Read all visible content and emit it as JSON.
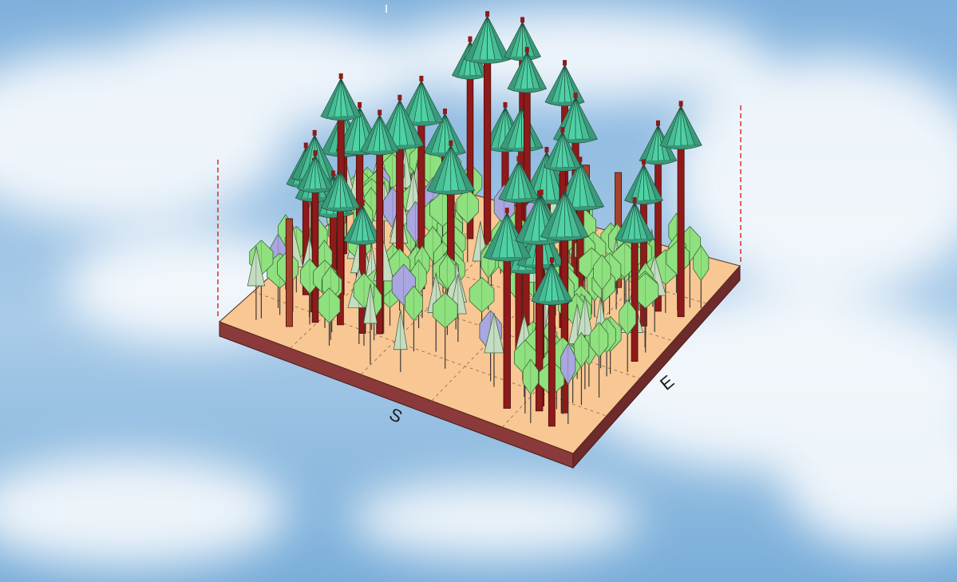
{
  "labels": {
    "south": "S",
    "east": "E"
  },
  "colors": {
    "plot_top": "#f8c793",
    "plot_front": "#8a3a3a",
    "plot_side": "#6e2b2b",
    "grid": "#8a6a4a",
    "boundary": "#d23030",
    "trunk": "#8e1a1a",
    "tall_crown": "#3fa985",
    "small_crown": "#8fe07f",
    "pale_crown": "#c4dcc0",
    "purple_crown": "#aaa6df"
  }
}
